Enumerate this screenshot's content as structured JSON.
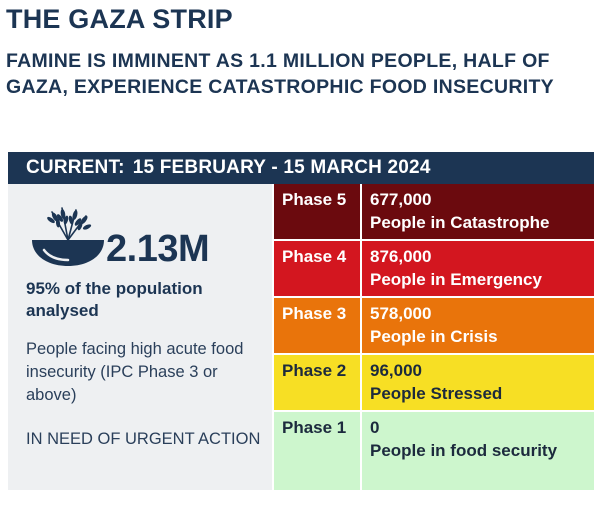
{
  "title": "THE GAZA STRIP",
  "subtitle": "FAMINE IS IMMINENT AS 1.1 MILLION PEOPLE, HALF OF GAZA, EXPERIENCE CATASTROPHIC FOOD INSECURITY",
  "current": {
    "label": "CURRENT:",
    "period": "15 FEBRUARY - 15 MARCH 2024"
  },
  "summary": {
    "icon": "wheat-bowl-icon",
    "total": "2.13M",
    "population_note": "95% of the population analysed",
    "description": "People facing high acute food insecurity (IPC Phase 3 or above)",
    "action": "IN NEED OF URGENT ACTION"
  },
  "colors": {
    "navy": "#1c3553",
    "phase5": "#6b0a0e",
    "phase4": "#d3161f",
    "phase3": "#e9740b",
    "phase2": "#f7df24",
    "phase1": "#cdf6cd"
  },
  "phases": [
    {
      "label": "Phase 5",
      "count": "677,000",
      "description": "People in Catastrophe"
    },
    {
      "label": "Phase 4",
      "count": "876,000",
      "description": "People in Emergency"
    },
    {
      "label": "Phase 3",
      "count": "578,000",
      "description": "People in Crisis"
    },
    {
      "label": "Phase 2",
      "count": "96,000",
      "description": "People Stressed"
    },
    {
      "label": "Phase 1",
      "count": "0",
      "description": "People in food security"
    }
  ]
}
